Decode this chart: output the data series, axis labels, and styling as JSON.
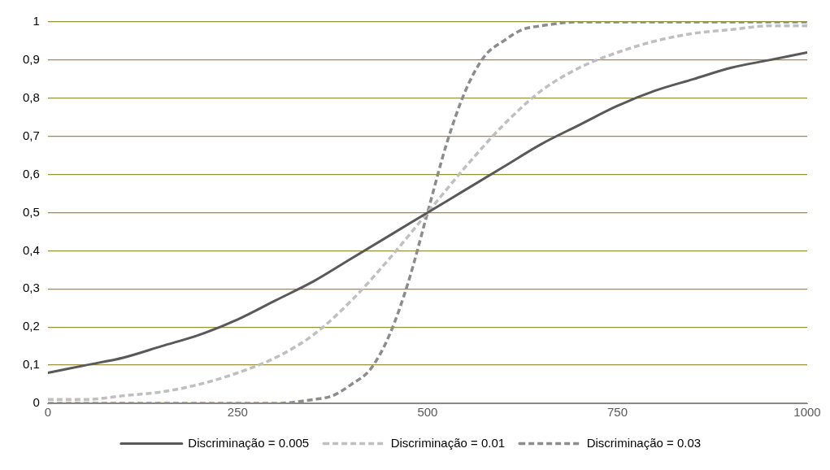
{
  "chart_data": {
    "type": "line",
    "xlim": [
      0,
      1000
    ],
    "xticks": [
      0,
      250,
      500,
      750,
      1000
    ],
    "ylim": [
      0,
      1
    ],
    "yticks": [
      0,
      {
        "value": 0.1,
        "label": "0,1"
      },
      {
        "value": 0.2,
        "label": "0,2"
      },
      {
        "value": 0.3,
        "label": "0,3"
      },
      {
        "value": 0.4,
        "label": "0,4"
      },
      {
        "value": 0.5,
        "label": "0,5"
      },
      {
        "value": 0.6,
        "label": "0,6"
      },
      {
        "value": 0.7,
        "label": "0,7"
      },
      {
        "value": 0.8,
        "label": "0,8"
      },
      {
        "value": 0.9,
        "label": "0,9"
      },
      1
    ],
    "grid": "y",
    "legend": "bottom",
    "marker": "none",
    "series": [
      {
        "name": "Discriminação = 0.005",
        "color": "#595959",
        "line_style": "solid",
        "x": [
          0,
          50,
          100,
          150,
          200,
          250,
          300,
          350,
          400,
          450,
          500,
          550,
          600,
          650,
          700,
          750,
          800,
          850,
          900,
          950,
          1000
        ],
        "values": [
          0.08,
          0.1,
          0.12,
          0.15,
          0.18,
          0.22,
          0.27,
          0.32,
          0.38,
          0.44,
          0.5,
          0.56,
          0.62,
          0.68,
          0.73,
          0.78,
          0.82,
          0.85,
          0.88,
          0.9,
          0.92
        ]
      },
      {
        "name": "Discriminação = 0.01",
        "color": "#bfbfbf",
        "line_style": "dashed",
        "x": [
          0,
          50,
          100,
          150,
          200,
          250,
          300,
          350,
          400,
          450,
          500,
          550,
          600,
          650,
          700,
          750,
          800,
          850,
          900,
          950,
          1000
        ],
        "values": [
          0.01,
          0.01,
          0.02,
          0.03,
          0.05,
          0.08,
          0.12,
          0.18,
          0.27,
          0.38,
          0.5,
          0.62,
          0.73,
          0.82,
          0.88,
          0.92,
          0.95,
          0.97,
          0.98,
          0.99,
          0.99
        ]
      },
      {
        "name": "Discriminação = 0.03",
        "color": "#8c8c8c",
        "line_style": "dashed",
        "x": [
          0,
          100,
          200,
          300,
          350,
          375,
          400,
          425,
          450,
          475,
          500,
          525,
          550,
          575,
          600,
          625,
          650,
          700,
          800,
          900,
          1000
        ],
        "values": [
          0,
          0,
          0,
          0,
          0.01,
          0.02,
          0.05,
          0.09,
          0.18,
          0.32,
          0.5,
          0.68,
          0.82,
          0.91,
          0.95,
          0.98,
          0.99,
          1,
          1,
          1,
          1
        ]
      }
    ]
  }
}
